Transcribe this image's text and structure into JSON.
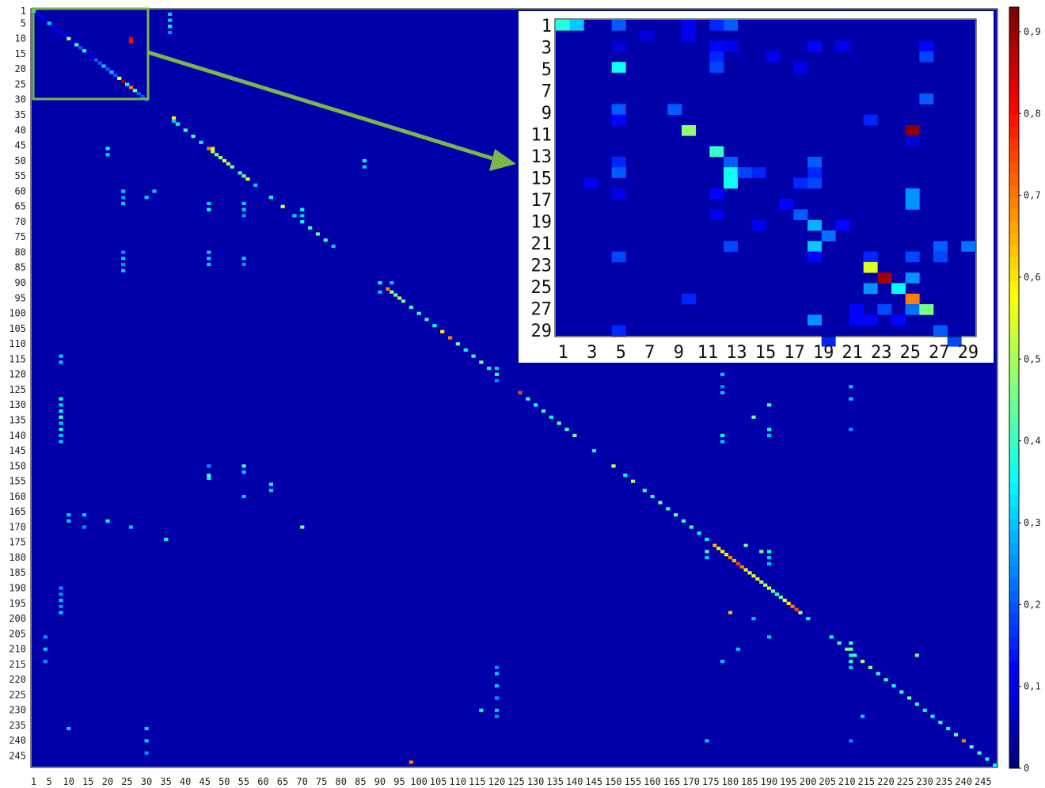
{
  "chart_data": {
    "type": "heatmap",
    "title": "",
    "xlabel": "",
    "ylabel": "",
    "size": 248,
    "value_range": [
      0,
      0.93
    ],
    "colormap": "jet",
    "x_tick_labels": [
      "1",
      "5",
      "10",
      "15",
      "20",
      "25",
      "30",
      "35",
      "40",
      "45",
      "50",
      "55",
      "60",
      "65",
      "70",
      "75",
      "80",
      "85",
      "90",
      "95",
      "100",
      "105",
      "110",
      "115",
      "120",
      "125",
      "130",
      "135",
      "140",
      "145",
      "150",
      "155",
      "160",
      "165",
      "170",
      "175",
      "180",
      "185",
      "190",
      "195",
      "200",
      "205",
      "210",
      "215",
      "220",
      "225",
      "230",
      "235",
      "240",
      "245"
    ],
    "y_tick_labels": [
      "1",
      "5",
      "10",
      "15",
      "20",
      "25",
      "30",
      "35",
      "40",
      "45",
      "50",
      "55",
      "60",
      "65",
      "70",
      "75",
      "80",
      "85",
      "90",
      "95",
      "100",
      "105",
      "110",
      "115",
      "120",
      "125",
      "130",
      "135",
      "140",
      "145",
      "150",
      "155",
      "160",
      "165",
      "170",
      "175",
      "180",
      "185",
      "190",
      "195",
      "200",
      "205",
      "210",
      "215",
      "220",
      "225",
      "230",
      "235",
      "240",
      "245"
    ],
    "colorbar": {
      "ticks": [
        0,
        0.1,
        0.2,
        0.3,
        0.4,
        0.5,
        0.6,
        0.7,
        0.8,
        0.9
      ],
      "tick_labels": [
        "0",
        "0,1",
        "0,2",
        "0,3",
        "0,4",
        "0,5",
        "0,6",
        "0,7",
        "0,8",
        "0,9"
      ]
    },
    "background_value": 0.04,
    "diagonal_values": [
      [
        1,
        0.35
      ],
      [
        2,
        0.1
      ],
      [
        3,
        0.1
      ],
      [
        4,
        0.1
      ],
      [
        5,
        0.3
      ],
      [
        6,
        0.1
      ],
      [
        7,
        0.1
      ],
      [
        8,
        0.1
      ],
      [
        9,
        0.1
      ],
      [
        10,
        0.5
      ],
      [
        11,
        0.1
      ],
      [
        12,
        0.4
      ],
      [
        13,
        0.2
      ],
      [
        14,
        0.35
      ],
      [
        15,
        0.1
      ],
      [
        16,
        0.1
      ],
      [
        17,
        0.2
      ],
      [
        18,
        0.2
      ],
      [
        19,
        0.3
      ],
      [
        20,
        0.2
      ],
      [
        21,
        0.3
      ],
      [
        22,
        0.2
      ],
      [
        23,
        0.55
      ],
      [
        24,
        0.9
      ],
      [
        25,
        0.35
      ],
      [
        26,
        0.7
      ],
      [
        27,
        0.45
      ],
      [
        28,
        0.2
      ],
      [
        29,
        0.2
      ],
      [
        30,
        0.2
      ],
      [
        37,
        0.3
      ],
      [
        38,
        0.35
      ],
      [
        40,
        0.4
      ],
      [
        42,
        0.4
      ],
      [
        44,
        0.35
      ],
      [
        46,
        0.7
      ],
      [
        47,
        0.5
      ],
      [
        48,
        0.45
      ],
      [
        49,
        0.5
      ],
      [
        50,
        0.55
      ],
      [
        51,
        0.5
      ],
      [
        52,
        0.45
      ],
      [
        54,
        0.4
      ],
      [
        55,
        0.45
      ],
      [
        56,
        0.55
      ],
      [
        58,
        0.3
      ],
      [
        62,
        0.35
      ],
      [
        65,
        0.55
      ],
      [
        68,
        0.3
      ],
      [
        70,
        0.35
      ],
      [
        72,
        0.4
      ],
      [
        74,
        0.45
      ],
      [
        76,
        0.4
      ],
      [
        78,
        0.3
      ],
      [
        92,
        0.7
      ],
      [
        93,
        0.5
      ],
      [
        94,
        0.45
      ],
      [
        95,
        0.5
      ],
      [
        96,
        0.45
      ],
      [
        98,
        0.4
      ],
      [
        100,
        0.4
      ],
      [
        102,
        0.4
      ],
      [
        104,
        0.35
      ],
      [
        106,
        0.6
      ],
      [
        108,
        0.7
      ],
      [
        110,
        0.45
      ],
      [
        112,
        0.35
      ],
      [
        114,
        0.4
      ],
      [
        116,
        0.45
      ],
      [
        118,
        0.35
      ],
      [
        120,
        0.4
      ],
      [
        126,
        0.75
      ],
      [
        128,
        0.4
      ],
      [
        130,
        0.35
      ],
      [
        132,
        0.4
      ],
      [
        134,
        0.35
      ],
      [
        136,
        0.45
      ],
      [
        138,
        0.4
      ],
      [
        140,
        0.45
      ],
      [
        145,
        0.35
      ],
      [
        150,
        0.55
      ],
      [
        153,
        0.35
      ],
      [
        155,
        0.5
      ],
      [
        158,
        0.4
      ],
      [
        160,
        0.4
      ],
      [
        162,
        0.45
      ],
      [
        164,
        0.4
      ],
      [
        166,
        0.45
      ],
      [
        168,
        0.4
      ],
      [
        170,
        0.4
      ],
      [
        172,
        0.35
      ],
      [
        174,
        0.35
      ],
      [
        176,
        0.65
      ],
      [
        177,
        0.55
      ],
      [
        178,
        0.6
      ],
      [
        179,
        0.6
      ],
      [
        180,
        0.7
      ],
      [
        181,
        0.65
      ],
      [
        182,
        0.75
      ],
      [
        183,
        0.7
      ],
      [
        184,
        0.6
      ],
      [
        185,
        0.55
      ],
      [
        186,
        0.55
      ],
      [
        187,
        0.6
      ],
      [
        188,
        0.5
      ],
      [
        189,
        0.5
      ],
      [
        190,
        0.55
      ],
      [
        191,
        0.45
      ],
      [
        192,
        0.4
      ],
      [
        193,
        0.45
      ],
      [
        194,
        0.55
      ],
      [
        195,
        0.6
      ],
      [
        196,
        0.7
      ],
      [
        197,
        0.75
      ],
      [
        198,
        0.5
      ],
      [
        200,
        0.35
      ],
      [
        206,
        0.35
      ],
      [
        208,
        0.4
      ],
      [
        210,
        0.45
      ],
      [
        212,
        0.4
      ],
      [
        214,
        0.5
      ],
      [
        216,
        0.45
      ],
      [
        218,
        0.4
      ],
      [
        220,
        0.4
      ],
      [
        222,
        0.35
      ],
      [
        224,
        0.4
      ],
      [
        226,
        0.45
      ],
      [
        228,
        0.4
      ],
      [
        230,
        0.35
      ],
      [
        232,
        0.35
      ],
      [
        234,
        0.4
      ],
      [
        236,
        0.35
      ],
      [
        238,
        0.45
      ],
      [
        240,
        0.7
      ],
      [
        242,
        0.4
      ],
      [
        244,
        0.4
      ],
      [
        246,
        0.35
      ],
      [
        248,
        0.35
      ]
    ],
    "offdiag_values": [
      [
        10,
        26,
        0.82
      ],
      [
        11,
        26,
        0.8
      ],
      [
        36,
        37,
        0.6
      ],
      [
        46,
        47,
        0.6
      ],
      [
        198,
        180,
        0.65
      ],
      [
        247,
        98,
        0.7
      ],
      [
        128,
        8,
        0.35
      ],
      [
        130,
        8,
        0.3
      ],
      [
        132,
        8,
        0.35
      ],
      [
        134,
        8,
        0.4
      ],
      [
        136,
        8,
        0.3
      ],
      [
        138,
        8,
        0.35
      ],
      [
        140,
        8,
        0.3
      ],
      [
        142,
        8,
        0.3
      ],
      [
        190,
        8,
        0.25
      ],
      [
        192,
        8,
        0.25
      ],
      [
        194,
        8,
        0.3
      ],
      [
        196,
        8,
        0.25
      ],
      [
        198,
        8,
        0.3
      ],
      [
        2,
        36,
        0.3
      ],
      [
        4,
        36,
        0.3
      ],
      [
        6,
        36,
        0.35
      ],
      [
        8,
        36,
        0.25
      ],
      [
        60,
        24,
        0.3
      ],
      [
        62,
        24,
        0.25
      ],
      [
        64,
        24,
        0.3
      ],
      [
        80,
        24,
        0.25
      ],
      [
        82,
        24,
        0.3
      ],
      [
        84,
        24,
        0.25
      ],
      [
        86,
        24,
        0.3
      ],
      [
        64,
        46,
        0.3
      ],
      [
        66,
        46,
        0.35
      ],
      [
        80,
        46,
        0.3
      ],
      [
        82,
        46,
        0.3
      ],
      [
        84,
        46,
        0.3
      ],
      [
        153,
        46,
        0.4
      ],
      [
        154,
        46,
        0.35
      ],
      [
        150,
        46,
        0.25
      ],
      [
        64,
        55,
        0.3
      ],
      [
        66,
        55,
        0.3
      ],
      [
        68,
        55,
        0.25
      ],
      [
        82,
        55,
        0.3
      ],
      [
        84,
        55,
        0.25
      ],
      [
        150,
        55,
        0.4
      ],
      [
        152,
        55,
        0.3
      ],
      [
        160,
        55,
        0.3
      ],
      [
        66,
        70,
        0.35
      ],
      [
        68,
        70,
        0.3
      ],
      [
        170,
        70,
        0.45
      ],
      [
        90,
        90,
        0.35
      ],
      [
        90,
        93,
        0.3
      ],
      [
        93,
        90,
        0.3
      ],
      [
        118,
        120,
        0.3
      ],
      [
        122,
        120,
        0.25
      ],
      [
        216,
        120,
        0.25
      ],
      [
        218,
        120,
        0.3
      ],
      [
        222,
        120,
        0.3
      ],
      [
        226,
        120,
        0.25
      ],
      [
        230,
        120,
        0.3
      ],
      [
        232,
        120,
        0.25
      ],
      [
        120,
        178,
        0.3
      ],
      [
        124,
        178,
        0.25
      ],
      [
        126,
        178,
        0.3
      ],
      [
        140,
        178,
        0.35
      ],
      [
        142,
        178,
        0.3
      ],
      [
        178,
        174,
        0.4
      ],
      [
        180,
        174,
        0.3
      ],
      [
        130,
        190,
        0.4
      ],
      [
        138,
        190,
        0.35
      ],
      [
        140,
        190,
        0.3
      ],
      [
        178,
        190,
        0.35
      ],
      [
        180,
        190,
        0.3
      ],
      [
        182,
        190,
        0.3
      ],
      [
        176,
        184,
        0.45
      ],
      [
        124,
        211,
        0.3
      ],
      [
        128,
        211,
        0.3
      ],
      [
        138,
        211,
        0.25
      ],
      [
        208,
        211,
        0.4
      ],
      [
        210,
        211,
        0.45
      ],
      [
        212,
        211,
        0.35
      ],
      [
        214,
        211,
        0.4
      ],
      [
        216,
        211,
        0.3
      ],
      [
        240,
        211,
        0.25
      ],
      [
        166,
        10,
        0.3
      ],
      [
        168,
        10,
        0.3
      ],
      [
        166,
        14,
        0.3
      ],
      [
        170,
        14,
        0.25
      ],
      [
        168,
        20,
        0.35
      ],
      [
        170,
        26,
        0.3
      ],
      [
        174,
        35,
        0.35
      ],
      [
        236,
        30,
        0.3
      ],
      [
        240,
        30,
        0.3
      ],
      [
        244,
        30,
        0.25
      ],
      [
        114,
        8,
        0.3
      ],
      [
        116,
        8,
        0.3
      ],
      [
        206,
        4,
        0.25
      ],
      [
        210,
        4,
        0.3
      ],
      [
        214,
        4,
        0.25
      ],
      [
        46,
        20,
        0.35
      ],
      [
        48,
        20,
        0.3
      ],
      [
        50,
        86,
        0.35
      ],
      [
        52,
        86,
        0.3
      ],
      [
        156,
        62,
        0.35
      ],
      [
        158,
        62,
        0.3
      ],
      [
        60,
        32,
        0.3
      ],
      [
        62,
        30,
        0.3
      ],
      [
        134,
        186,
        0.45
      ],
      [
        178,
        188,
        0.45
      ],
      [
        210,
        182,
        0.3
      ],
      [
        214,
        178,
        0.3
      ],
      [
        206,
        190,
        0.3
      ],
      [
        200,
        186,
        0.3
      ],
      [
        230,
        116,
        0.35
      ],
      [
        236,
        10,
        0.3
      ],
      [
        240,
        174,
        0.3
      ],
      [
        232,
        214,
        0.3
      ],
      [
        212,
        228,
        0.45
      ]
    ],
    "inset": {
      "range": [
        1,
        29
      ],
      "x_tick_labels": [
        "1",
        "3",
        "5",
        "7",
        "9",
        "11",
        "13",
        "15",
        "17",
        "19",
        "21",
        "23",
        "25",
        "27",
        "29"
      ],
      "y_tick_labels": [
        "1",
        "3",
        "5",
        "7",
        "9",
        "11",
        "13",
        "15",
        "17",
        "19",
        "21",
        "23",
        "25",
        "27",
        "29"
      ],
      "cells": [
        [
          1,
          1,
          0.38
        ],
        [
          1,
          2,
          0.3
        ],
        [
          1,
          5,
          0.2
        ],
        [
          1,
          10,
          0.1
        ],
        [
          1,
          13,
          0.2
        ],
        [
          1,
          12,
          0.15
        ],
        [
          2,
          10,
          0.1
        ],
        [
          2,
          7,
          0.08
        ],
        [
          3,
          5,
          0.08
        ],
        [
          3,
          12,
          0.12
        ],
        [
          3,
          13,
          0.1
        ],
        [
          3,
          19,
          0.12
        ],
        [
          3,
          21,
          0.1
        ],
        [
          3,
          27,
          0.12
        ],
        [
          4,
          12,
          0.15
        ],
        [
          4,
          16,
          0.1
        ],
        [
          4,
          27,
          0.18
        ],
        [
          5,
          5,
          0.36
        ],
        [
          5,
          12,
          0.18
        ],
        [
          5,
          18,
          0.1
        ],
        [
          8,
          27,
          0.2
        ],
        [
          9,
          5,
          0.2
        ],
        [
          9,
          9,
          0.2
        ],
        [
          10,
          5,
          0.12
        ],
        [
          10,
          23,
          0.15
        ],
        [
          11,
          10,
          0.48
        ],
        [
          11,
          26,
          0.92
        ],
        [
          12,
          26,
          0.08
        ],
        [
          13,
          12,
          0.4
        ],
        [
          14,
          5,
          0.15
        ],
        [
          14,
          13,
          0.2
        ],
        [
          14,
          19,
          0.2
        ],
        [
          15,
          5,
          0.2
        ],
        [
          15,
          13,
          0.36
        ],
        [
          15,
          14,
          0.18
        ],
        [
          15,
          15,
          0.15
        ],
        [
          15,
          19,
          0.15
        ],
        [
          16,
          3,
          0.1
        ],
        [
          16,
          13,
          0.36
        ],
        [
          16,
          18,
          0.15
        ],
        [
          16,
          19,
          0.18
        ],
        [
          17,
          5,
          0.1
        ],
        [
          17,
          12,
          0.12
        ],
        [
          17,
          26,
          0.25
        ],
        [
          18,
          26,
          0.25
        ],
        [
          18,
          17,
          0.12
        ],
        [
          19,
          18,
          0.2
        ],
        [
          19,
          12,
          0.1
        ],
        [
          20,
          19,
          0.28
        ],
        [
          20,
          15,
          0.1
        ],
        [
          20,
          21,
          0.12
        ],
        [
          21,
          20,
          0.22
        ],
        [
          22,
          19,
          0.3
        ],
        [
          22,
          13,
          0.18
        ],
        [
          22,
          28,
          0.2
        ],
        [
          22,
          30,
          0.22
        ],
        [
          23,
          5,
          0.18
        ],
        [
          23,
          19,
          0.12
        ],
        [
          23,
          23,
          0.15
        ],
        [
          23,
          26,
          0.18
        ],
        [
          23,
          28,
          0.18
        ],
        [
          24,
          23,
          0.55
        ],
        [
          25,
          24,
          0.9
        ],
        [
          25,
          26,
          0.25
        ],
        [
          26,
          23,
          0.25
        ],
        [
          26,
          25,
          0.35
        ],
        [
          27,
          10,
          0.15
        ],
        [
          27,
          26,
          0.7
        ],
        [
          28,
          22,
          0.12
        ],
        [
          28,
          24,
          0.18
        ],
        [
          28,
          26,
          0.22
        ],
        [
          28,
          27,
          0.46
        ],
        [
          29,
          19,
          0.25
        ],
        [
          29,
          22,
          0.12
        ],
        [
          29,
          23,
          0.12
        ],
        [
          29,
          25,
          0.12
        ],
        [
          30,
          5,
          0.15
        ],
        [
          30,
          28,
          0.2
        ],
        [
          31,
          20,
          0.15
        ],
        [
          31,
          29,
          0.18
        ]
      ]
    }
  }
}
